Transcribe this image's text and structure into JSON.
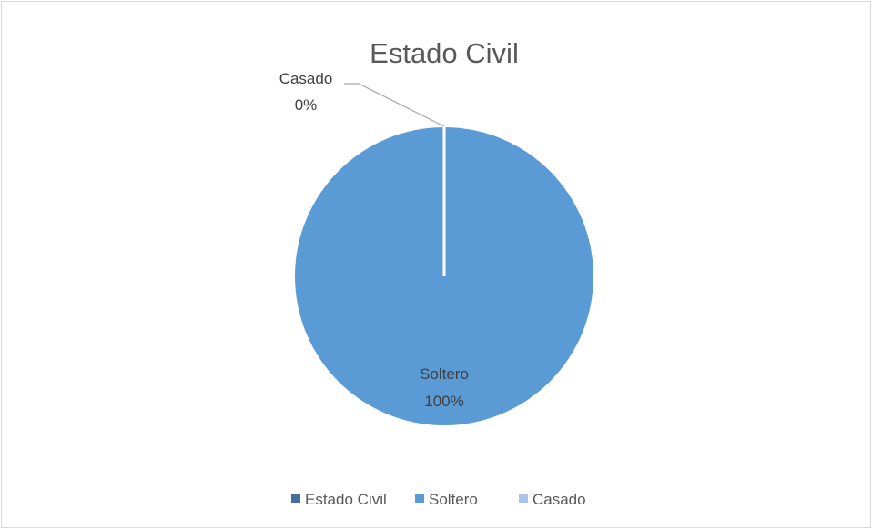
{
  "chart_data": {
    "type": "pie",
    "title": "Estado Civil",
    "categories": [
      "Estado Civil",
      "Soltero",
      "Casado"
    ],
    "values": [
      0,
      100,
      0
    ],
    "percent_labels": [
      "0%",
      "100%",
      "0%"
    ],
    "colors": [
      "#41719c",
      "#5b9bd5",
      "#a9c4e8"
    ],
    "data_labels": [
      {
        "category": "Casado",
        "percent": "0%"
      },
      {
        "category": "Soltero",
        "percent": "100%"
      }
    ],
    "legend": {
      "position": "bottom",
      "entries": [
        "Estado Civil",
        "Soltero",
        "Casado"
      ]
    }
  }
}
